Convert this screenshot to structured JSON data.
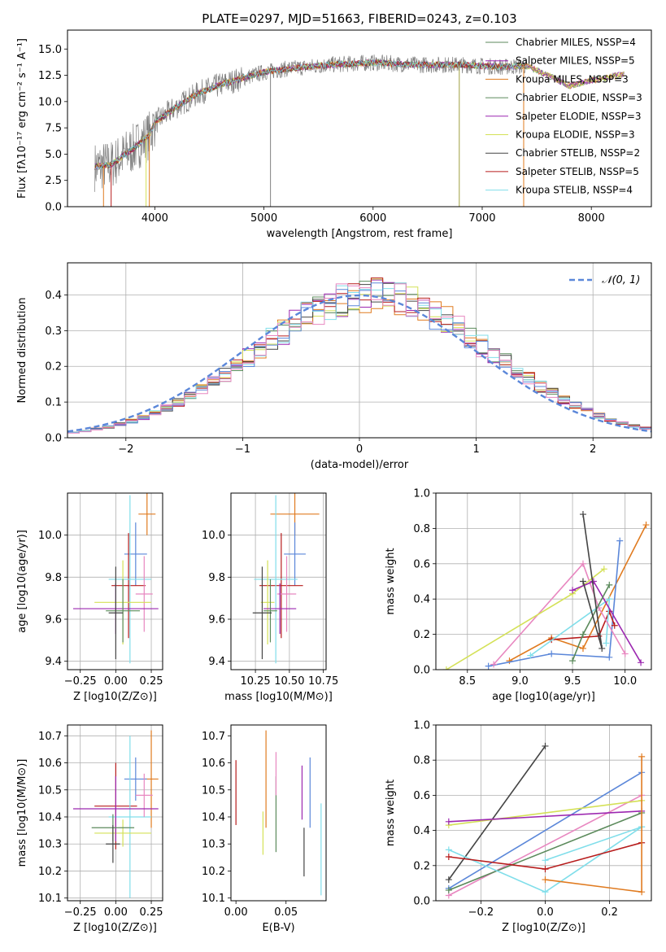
{
  "colors": {
    "Chabrier MILES": "#5b8a5b",
    "Salpeter MILES": "#9c27b0",
    "Kroupa MILES": "#e07b20",
    "Chabrier ELODIE": "#5b8a5b",
    "Salpeter ELODIE": "#9c27b0",
    "Kroupa ELODIE": "#d4e157",
    "Chabrier STELIB": "#444444",
    "Salpeter STELIB": "#b71c1c",
    "Kroupa STELIB": "#80deea",
    "blue": "#5b87d9",
    "pink": "#e887c0",
    "normal": "#5b87d9"
  },
  "chart_data": [
    {
      "id": "spectrum",
      "type": "line",
      "title": "PLATE=0297, MJD=51663, FIBERID=0243, z=0.103",
      "xlabel": "wavelength [Angstrom, rest frame]",
      "ylabel": "Flux [fλ10⁻¹⁷ erg cm⁻² s⁻¹ A⁻¹]",
      "xlim": [
        3200,
        8550
      ],
      "ylim": [
        0,
        16.8
      ],
      "xticks": [
        "4000",
        "5000",
        "6000",
        "7000",
        "8000"
      ],
      "yticks": [
        "0.0",
        "2.5",
        "5.0",
        "7.5",
        "10.0",
        "12.5",
        "15.0"
      ],
      "legend_position": "right",
      "legend": [
        "Chabrier MILES, NSSP=4",
        "Salpeter MILES, NSSP=5",
        "Kroupa MILES, NSSP=3",
        "Chabrier ELODIE, NSSP=3",
        "Salpeter ELODIE, NSSP=3",
        "Kroupa ELODIE, NSSP=3",
        "Chabrier STELIB, NSSP=2",
        "Salpeter STELIB, NSSP=5",
        "Kroupa STELIB, NSSP=4"
      ],
      "envelope": {
        "x": [
          3450,
          3600,
          3800,
          3950,
          4000,
          4200,
          4400,
          4600,
          4800,
          5000,
          5200,
          5400,
          5600,
          5800,
          6000,
          6200,
          6400,
          6600,
          6800,
          7000,
          7200,
          7400,
          7600,
          7800,
          8000,
          8200,
          8300
        ],
        "y": [
          3.8,
          4.0,
          5.5,
          6.8,
          8.0,
          9.5,
          10.8,
          11.6,
          12.2,
          12.8,
          13.1,
          13.3,
          13.5,
          13.6,
          13.7,
          13.6,
          13.5,
          13.5,
          13.5,
          13.4,
          13.3,
          13.4,
          12.5,
          11.5,
          12.0,
          12.4,
          12.6
        ]
      }
    },
    {
      "id": "histogram",
      "type": "bar",
      "xlabel": "(data-model)/error",
      "ylabel": "Normed distribution",
      "xlim": [
        -2.5,
        2.5
      ],
      "ylim": [
        0,
        0.49
      ],
      "xticks": [
        "−2",
        "−1",
        "0",
        "1",
        "2"
      ],
      "yticks": [
        "0.0",
        "0.1",
        "0.2",
        "0.3",
        "0.4"
      ],
      "legend": [
        "𝒩(0, 1)"
      ],
      "legend_position": "top-right",
      "bin_width": 0.1
    },
    {
      "id": "age-vs-Z",
      "type": "scatter",
      "xlabel": "Z [log10(Z/Z⊙)]",
      "ylabel": "age  [log10(age/yr)]",
      "xlim": [
        -0.34,
        0.33
      ],
      "ylim": [
        9.36,
        10.2
      ],
      "xticks": [
        "−0.25",
        "0.00",
        "0.25"
      ],
      "yticks": [
        "9.4",
        "9.6",
        "9.8",
        "10.0"
      ],
      "points": [
        {
          "color": "#e07b20",
          "x": 0.22,
          "xerr": 0.06,
          "y": 10.1,
          "yerr": 0.1
        },
        {
          "color": "#5b87d9",
          "x": 0.14,
          "xerr": 0.08,
          "y": 9.91,
          "yerr": 0.15
        },
        {
          "color": "#b71c1c",
          "x": 0.09,
          "xerr": 0.12,
          "y": 9.76,
          "yerr": 0.25
        },
        {
          "color": "#80deea",
          "x": 0.1,
          "xerr": 0.15,
          "y": 9.79,
          "yerr": 0.4
        },
        {
          "color": "#e887c0",
          "x": 0.2,
          "xerr": 0.06,
          "y": 9.72,
          "yerr": 0.18
        },
        {
          "color": "#d4e157",
          "x": 0.05,
          "xerr": 0.2,
          "y": 9.68,
          "yerr": 0.2
        },
        {
          "color": "#9c27b0",
          "x": 0.0,
          "xerr": 0.3,
          "y": 9.65,
          "yerr": 0.12
        },
        {
          "color": "#5b8a5b",
          "x": 0.05,
          "xerr": 0.12,
          "y": 9.64,
          "yerr": 0.15
        },
        {
          "color": "#444444",
          "x": 0.0,
          "xerr": 0.05,
          "y": 9.63,
          "yerr": 0.22
        }
      ]
    },
    {
      "id": "age-vs-mass",
      "type": "scatter",
      "xlabel": "mass [log10(M/M⊙)]",
      "ylabel": "",
      "xlim": [
        10.07,
        10.77
      ],
      "ylim": [
        9.36,
        10.2
      ],
      "xticks": [
        "10.25",
        "10.50",
        "10.75"
      ],
      "yticks": [
        "9.4",
        "9.6",
        "9.8",
        "10.0"
      ],
      "points": [
        {
          "color": "#e07b20",
          "x": 10.54,
          "xerr": 0.18,
          "y": 10.1,
          "yerr": 0.1
        },
        {
          "color": "#5b87d9",
          "x": 10.54,
          "xerr": 0.08,
          "y": 9.91,
          "yerr": 0.15
        },
        {
          "color": "#b71c1c",
          "x": 10.44,
          "xerr": 0.16,
          "y": 9.76,
          "yerr": 0.25
        },
        {
          "color": "#80deea",
          "x": 10.4,
          "xerr": 0.16,
          "y": 9.79,
          "yerr": 0.4
        },
        {
          "color": "#e887c0",
          "x": 10.48,
          "xerr": 0.07,
          "y": 9.72,
          "yerr": 0.18
        },
        {
          "color": "#d4e157",
          "x": 10.34,
          "xerr": 0.05,
          "y": 9.68,
          "yerr": 0.2
        },
        {
          "color": "#9c27b0",
          "x": 10.43,
          "xerr": 0.12,
          "y": 9.65,
          "yerr": 0.12
        },
        {
          "color": "#5b8a5b",
          "x": 10.36,
          "xerr": 0.05,
          "y": 9.64,
          "yerr": 0.15
        },
        {
          "color": "#444444",
          "x": 10.3,
          "xerr": 0.07,
          "y": 9.63,
          "yerr": 0.22
        }
      ]
    },
    {
      "id": "weight-vs-age",
      "type": "line",
      "xlabel": "age  [log10(age/yr)]",
      "ylabel": "mass weight",
      "xlim": [
        8.2,
        10.25
      ],
      "ylim": [
        0,
        1.0
      ],
      "xticks": [
        "8.5",
        "9.0",
        "9.5",
        "10.0"
      ],
      "yticks": [
        "0.0",
        "0.2",
        "0.4",
        "0.6",
        "0.8",
        "1.0"
      ],
      "series": [
        {
          "color": "#e07b20",
          "x": [
            8.9,
            9.3,
            9.6,
            10.2
          ],
          "y": [
            0.05,
            0.18,
            0.12,
            0.82
          ]
        },
        {
          "color": "#5b87d9",
          "x": [
            8.7,
            9.3,
            9.85,
            9.95
          ],
          "y": [
            0.02,
            0.09,
            0.07,
            0.73
          ]
        },
        {
          "color": "#b71c1c",
          "x": [
            9.3,
            9.75,
            9.85,
            9.9
          ],
          "y": [
            0.17,
            0.19,
            0.33,
            0.25
          ]
        },
        {
          "color": "#80deea",
          "x": [
            9.1,
            9.85,
            9.82
          ],
          "y": [
            0.08,
            0.4,
            0.15
          ]
        },
        {
          "color": "#e887c0",
          "x": [
            8.75,
            9.6,
            9.75,
            10.0
          ],
          "y": [
            0.03,
            0.6,
            0.35,
            0.09
          ]
        },
        {
          "color": "#d4e157",
          "x": [
            8.3,
            9.5,
            9.8
          ],
          "y": [
            0.0,
            0.43,
            0.57
          ]
        },
        {
          "color": "#9c27b0",
          "x": [
            9.5,
            9.7,
            10.15
          ],
          "y": [
            0.45,
            0.5,
            0.04
          ]
        },
        {
          "color": "#5b8a5b",
          "x": [
            9.5,
            9.6,
            9.85
          ],
          "y": [
            0.05,
            0.2,
            0.48
          ]
        },
        {
          "color": "#444444",
          "x": [
            9.6,
            9.78,
            9.6
          ],
          "y": [
            0.88,
            0.12,
            0.5
          ]
        }
      ]
    },
    {
      "id": "mass-vs-Z",
      "type": "scatter",
      "xlabel": "Z [log10(Z/Z⊙)]",
      "ylabel": "mass [log10(M/M⊙)]",
      "xlim": [
        -0.34,
        0.33
      ],
      "ylim": [
        10.09,
        10.74
      ],
      "xticks": [
        "−0.25",
        "0.00",
        "0.25"
      ],
      "yticks": [
        "10.1",
        "10.2",
        "10.3",
        "10.4",
        "10.5",
        "10.6",
        "10.7"
      ],
      "points": [
        {
          "color": "#e07b20",
          "x": 0.25,
          "xerr": 0.05,
          "y": 10.54,
          "yerr": 0.18
        },
        {
          "color": "#5b87d9",
          "x": 0.14,
          "xerr": 0.08,
          "y": 10.54,
          "yerr": 0.08
        },
        {
          "color": "#b71c1c",
          "x": 0.0,
          "xerr": 0.15,
          "y": 10.44,
          "yerr": 0.16
        },
        {
          "color": "#80deea",
          "x": 0.1,
          "xerr": 0.15,
          "y": 10.4,
          "yerr": 0.3
        },
        {
          "color": "#e887c0",
          "x": 0.2,
          "xerr": 0.06,
          "y": 10.48,
          "yerr": 0.08
        },
        {
          "color": "#d4e157",
          "x": 0.05,
          "xerr": 0.2,
          "y": 10.34,
          "yerr": 0.05
        },
        {
          "color": "#9c27b0",
          "x": 0.0,
          "xerr": 0.3,
          "y": 10.43,
          "yerr": 0.12
        },
        {
          "color": "#5b8a5b",
          "x": -0.02,
          "xerr": 0.15,
          "y": 10.36,
          "yerr": 0.05
        },
        {
          "color": "#444444",
          "x": -0.02,
          "xerr": 0.05,
          "y": 10.3,
          "yerr": 0.07
        }
      ]
    },
    {
      "id": "mass-vs-EBV",
      "type": "scatter",
      "xlabel": "E(B-V)",
      "ylabel": "",
      "xlim": [
        -0.005,
        0.09
      ],
      "ylim": [
        10.09,
        10.74
      ],
      "xticks": [
        "0.00",
        "0.05"
      ],
      "yticks": [
        "10.1",
        "10.2",
        "10.3",
        "10.4",
        "10.5",
        "10.6",
        "10.7"
      ],
      "points": [
        {
          "color": "#b71c1c",
          "x": 0.0,
          "y": 10.49,
          "yerr": 0.12
        },
        {
          "color": "#d4e157",
          "x": 0.027,
          "y": 10.34,
          "yerr": 0.08
        },
        {
          "color": "#e07b20",
          "x": 0.03,
          "y": 10.54,
          "yerr": 0.18
        },
        {
          "color": "#5b8a5b",
          "x": 0.04,
          "y": 10.41,
          "yerr": 0.14
        },
        {
          "color": "#e887c0",
          "x": 0.04,
          "y": 10.56,
          "yerr": 0.08
        },
        {
          "color": "#9c27b0",
          "x": 0.066,
          "y": 10.49,
          "yerr": 0.1
        },
        {
          "color": "#444444",
          "x": 0.068,
          "y": 10.27,
          "yerr": 0.09
        },
        {
          "color": "#5b87d9",
          "x": 0.074,
          "y": 10.49,
          "yerr": 0.13
        },
        {
          "color": "#80deea",
          "x": 0.085,
          "y": 10.28,
          "yerr": 0.17
        }
      ]
    },
    {
      "id": "weight-vs-Z",
      "type": "line",
      "xlabel": "Z [log10(Z/Z⊙)]",
      "ylabel": "mass weight",
      "xlim": [
        -0.34,
        0.33
      ],
      "ylim": [
        0,
        1.0
      ],
      "xticks": [
        "−0.2",
        "0.0",
        "0.2"
      ],
      "yticks": [
        "0.0",
        "0.2",
        "0.4",
        "0.6",
        "0.8",
        "1.0"
      ],
      "series": [
        {
          "color": "#444444",
          "x": [
            -0.3,
            0.0
          ],
          "y": [
            0.12,
            0.88
          ]
        },
        {
          "color": "#5b87d9",
          "x": [
            -0.3,
            0.3
          ],
          "y": [
            0.07,
            0.73
          ]
        },
        {
          "color": "#e887c0",
          "x": [
            -0.3,
            0.3
          ],
          "y": [
            0.03,
            0.6
          ]
        },
        {
          "color": "#d4e157",
          "x": [
            -0.3,
            0.3
          ],
          "y": [
            0.43,
            0.57
          ]
        },
        {
          "color": "#9c27b0",
          "x": [
            -0.3,
            0.3
          ],
          "y": [
            0.45,
            0.51
          ]
        },
        {
          "color": "#5b8a5b",
          "x": [
            -0.3,
            0.3
          ],
          "y": [
            0.06,
            0.5
          ]
        },
        {
          "color": "#80deea",
          "x": [
            -0.3,
            0.0,
            0.3
          ],
          "y": [
            0.29,
            0.05,
            0.42
          ]
        },
        {
          "color": "#80deea",
          "x": [
            0.0,
            0.3
          ],
          "y": [
            0.23,
            0.42
          ]
        },
        {
          "color": "#b71c1c",
          "x": [
            -0.3,
            0.0,
            0.3
          ],
          "y": [
            0.25,
            0.18,
            0.33
          ]
        },
        {
          "color": "#e07b20",
          "x": [
            0.0,
            0.3,
            0.3
          ],
          "y": [
            0.12,
            0.05,
            0.82
          ]
        }
      ]
    }
  ]
}
